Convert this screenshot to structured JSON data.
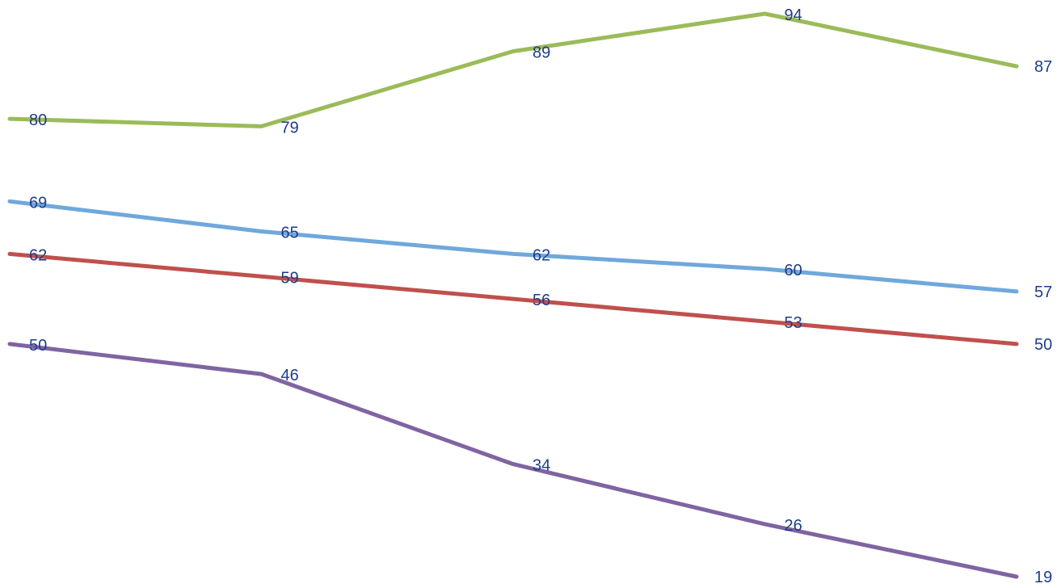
{
  "chart_data": {
    "type": "line",
    "title": "",
    "xlabel": "",
    "ylabel": "",
    "categories": [
      "",
      "",
      "",
      "",
      ""
    ],
    "ylim": [
      19,
      94
    ],
    "grid": false,
    "legend": "none",
    "label_color": "#1f3c88",
    "series": [
      {
        "color": "#9bbb59",
        "values": [
          80,
          79,
          89,
          94,
          87
        ]
      },
      {
        "color": "#6fa8dc",
        "values": [
          69,
          65,
          62,
          60,
          57
        ]
      },
      {
        "color": "#c0504d",
        "values": [
          62,
          59,
          56,
          53,
          50
        ]
      },
      {
        "color": "#8064a2",
        "values": [
          50,
          46,
          34,
          26,
          19
        ]
      }
    ]
  }
}
